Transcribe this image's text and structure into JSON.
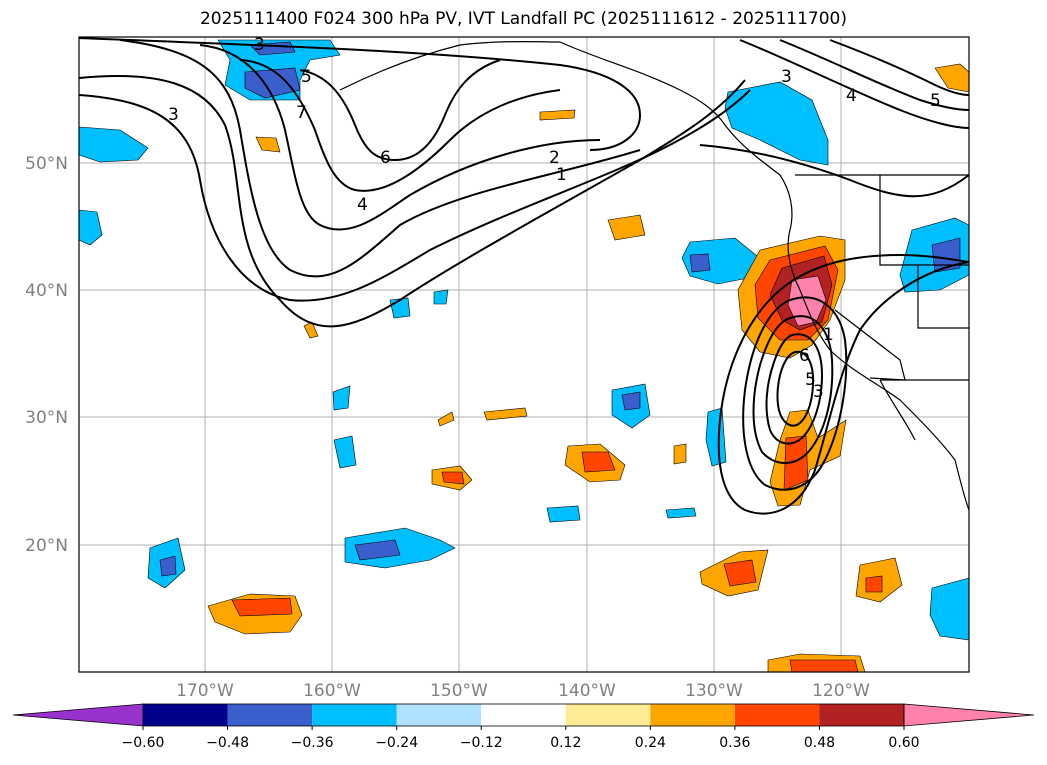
{
  "title": "2025111400 F024 300 hPa PV, IVT Landfall PC (2025111612 - 2025111700)",
  "lat_labels": [
    "50°N",
    "40°N",
    "30°N",
    "20°N"
  ],
  "lon_labels": [
    "170°W",
    "160°W",
    "150°W",
    "140°W",
    "130°W",
    "120°W"
  ],
  "colorbar": {
    "levels": [
      "−0.60",
      "−0.48",
      "−0.36",
      "−0.24",
      "−0.12",
      "0.12",
      "0.24",
      "0.36",
      "0.48",
      "0.60"
    ],
    "colors": [
      "#9932cc",
      "#00008b",
      "#3a5fcd",
      "#00bfff",
      "#b0e2ff",
      "#ffffff",
      "#fdeb95",
      "#ffa500",
      "#ff4500",
      "#b22222",
      "#ff82ab"
    ]
  },
  "contour_labels": {
    "pac_3a": "3",
    "pac_5": "5",
    "pac_7": "7",
    "pac_3b": "3",
    "pac_6": "6",
    "pac_4": "4",
    "pac_2": "2",
    "pac_1": "1",
    "ne_3": "3",
    "ne_4": "4",
    "ne_5": "5",
    "coast_6": "6",
    "coast_5": "5",
    "coast_3": "3",
    "coast_1": "1"
  },
  "colors": {
    "neg_dark": "#3a5fcd",
    "neg": "#00bfff",
    "pos": "#ffa500",
    "pos_mid": "#ff4500",
    "pos_dark": "#b22222",
    "pos_max": "#ff82ab",
    "grid": "#b0b0b0",
    "tick_label": "#808080"
  }
}
